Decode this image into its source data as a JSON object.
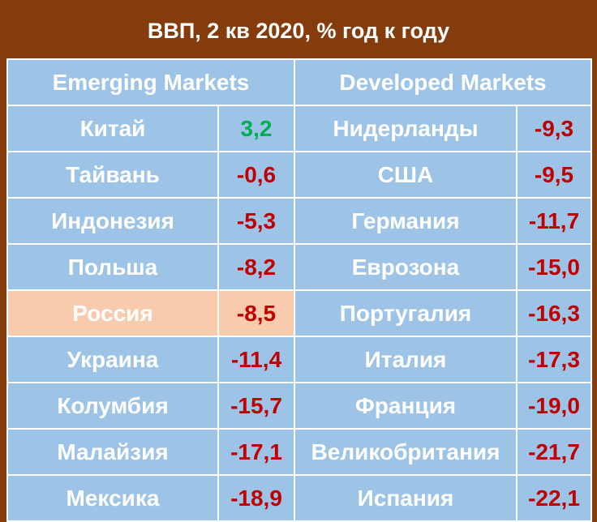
{
  "title": "ВВП, 2 кв 2020, % год к году",
  "table": {
    "headers": [
      "Emerging Markets",
      "Developed Markets"
    ],
    "rows": [
      [
        "Китай",
        "3,2",
        "Нидерланды",
        "-9,3"
      ],
      [
        "Тайвань",
        "-0,6",
        "США",
        "-9,5"
      ],
      [
        "Индонезия",
        "-5,3",
        "Германия",
        "-11,7"
      ],
      [
        "Польша",
        "-8,2",
        "Еврозона",
        "-15,0"
      ],
      [
        "Россия",
        "-8,5",
        "Португалия",
        "-16,3"
      ],
      [
        "Украина",
        "-11,4",
        "Италия",
        "-17,3"
      ],
      [
        "Колумбия",
        "-15,7",
        "Франция",
        "-19,0"
      ],
      [
        "Малайзия",
        "-17,1",
        "Великобритания",
        "-21,7"
      ],
      [
        "Мексика",
        "-18,9",
        "Испания",
        "-22,1"
      ]
    ]
  }
}
